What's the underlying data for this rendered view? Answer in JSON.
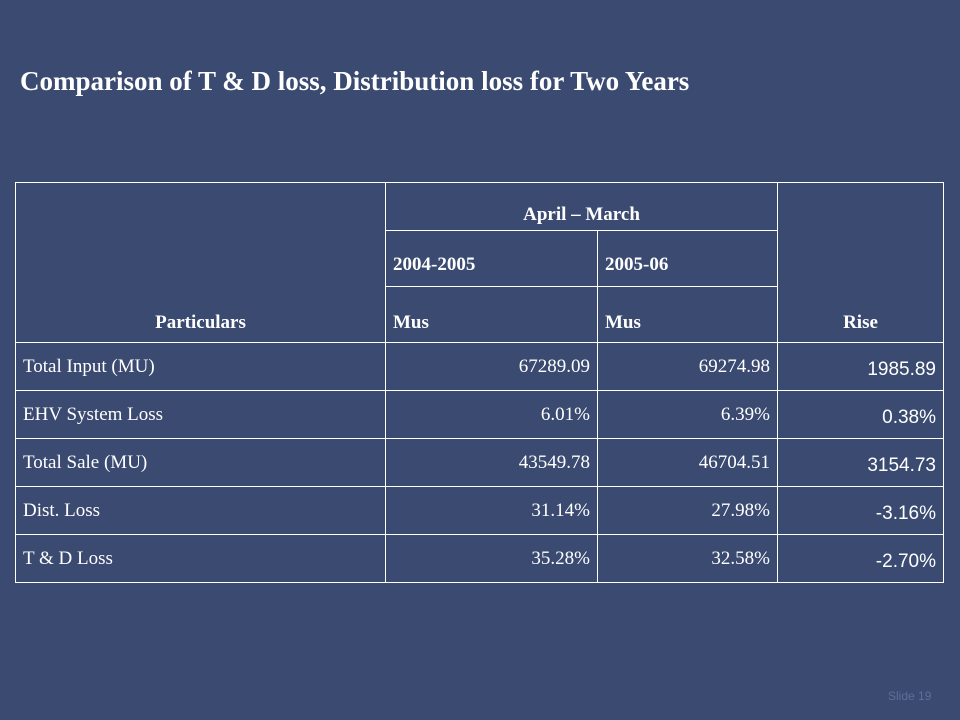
{
  "slide": {
    "title": "Comparison of T & D loss, Distribution loss for  Two Years",
    "number_label": "Slide 19"
  },
  "table": {
    "header": {
      "particulars": "Particulars",
      "period": "April – March",
      "year_1": "2004-2005",
      "year_2": "2005-06",
      "unit_1": "Mus",
      "unit_2": "Mus",
      "rise": "Rise"
    },
    "rows": [
      {
        "label": "Total Input (MU)",
        "year_1": "67289.09",
        "year_2": "69274.98",
        "rise": "1985.89"
      },
      {
        "label": "EHV System Loss",
        "year_1": "6.01%",
        "year_2": "6.39%",
        "rise": "0.38%"
      },
      {
        "label": "Total Sale (MU)",
        "year_1": "43549.78",
        "year_2": "46704.51",
        "rise": "3154.73"
      },
      {
        "label": "Dist. Loss",
        "year_1": "31.14%",
        "year_2": "27.98%",
        "rise": "-3.16%"
      },
      {
        "label": "T & D Loss",
        "year_1": "35.28%",
        "year_2": "32.58%",
        "rise": "-2.70%"
      }
    ]
  },
  "colors": {
    "background": "#3a4a70",
    "text": "#ffffff",
    "grid": "#ffffff",
    "slide_number": "#5e6f98"
  }
}
